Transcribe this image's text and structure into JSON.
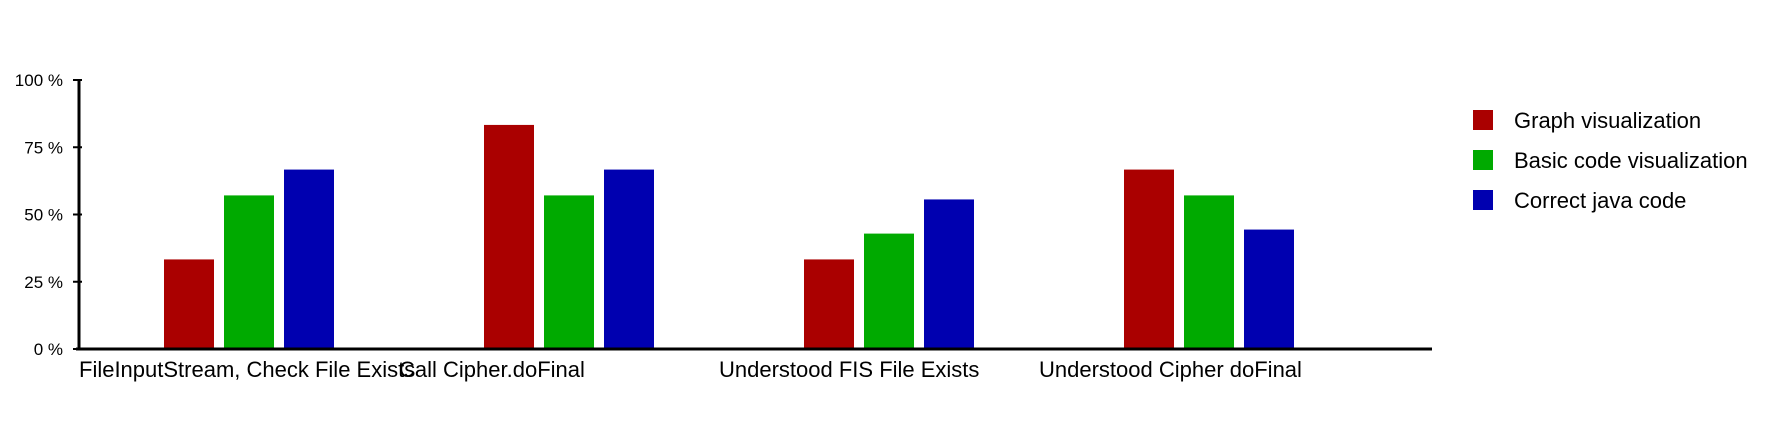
{
  "chart_data": {
    "type": "bar",
    "title": "",
    "xlabel": "",
    "ylabel": "",
    "ylim": [
      0,
      100
    ],
    "y_ticks": [
      "0 %",
      "25 %",
      "50 %",
      "75 %",
      "100 %"
    ],
    "y_tick_values": [
      0,
      25,
      50,
      75,
      100
    ],
    "categories": [
      "FileInputStream, Check File Exists",
      "Call Cipher.doFinal",
      "Understood FIS File Exists",
      "Understood Cipher doFinal"
    ],
    "series": [
      {
        "name": "Graph visualization",
        "color": "#aa0000",
        "values": [
          33.3,
          83.3,
          33.3,
          66.7
        ]
      },
      {
        "name": "Basic code visualization",
        "color": "#00aa00",
        "values": [
          57.1,
          57.1,
          42.9,
          57.1
        ]
      },
      {
        "name": "Correct java code",
        "color": "#0000b0",
        "values": [
          66.7,
          66.7,
          55.6,
          44.4
        ]
      }
    ],
    "legend_position": "right",
    "grid": false
  }
}
